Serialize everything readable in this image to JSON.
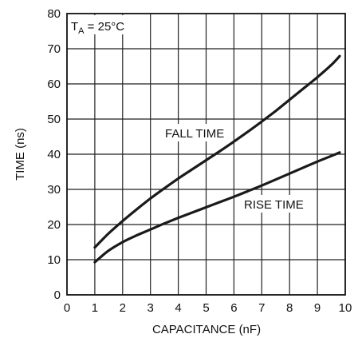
{
  "chart_data": {
    "type": "line",
    "xlabel": "CAPACITANCE (nF)",
    "ylabel": "TIME (ns)",
    "xlim": [
      0,
      10
    ],
    "ylim": [
      0,
      80
    ],
    "x_ticks": [
      "0",
      "1",
      "2",
      "3",
      "4",
      "5",
      "6",
      "7",
      "8",
      "9",
      "10"
    ],
    "y_ticks": [
      "0",
      "10",
      "20",
      "30",
      "40",
      "50",
      "60",
      "70",
      "80"
    ],
    "grid": true,
    "condition": {
      "main": "T",
      "sub": "A",
      "rest": " = 25°C"
    },
    "series": [
      {
        "name": "FALL TIME",
        "x": [
          1,
          1.5,
          2,
          2.5,
          3,
          3.5,
          4,
          4.5,
          5,
          5.5,
          6,
          6.5,
          7,
          7.5,
          8,
          8.5,
          9,
          9.5,
          9.8
        ],
        "y": [
          13.5,
          17.5,
          21,
          24.3,
          27.4,
          30.3,
          33.1,
          35.7,
          38.3,
          40.9,
          43.6,
          46.4,
          49.3,
          52.3,
          55.5,
          58.7,
          61.9,
          65.4,
          67.9
        ]
      },
      {
        "name": "RISE TIME",
        "x": [
          1,
          1.5,
          2,
          2.5,
          3,
          3.5,
          4,
          4.5,
          5,
          5.5,
          6,
          6.5,
          7,
          7.5,
          8,
          8.5,
          9,
          9.5,
          9.8
        ],
        "y": [
          9.3,
          12.6,
          15,
          16.9,
          18.6,
          20.3,
          21.9,
          23.4,
          24.9,
          26.4,
          27.9,
          29.5,
          31.1,
          32.8,
          34.5,
          36.2,
          37.9,
          39.5,
          40.5
        ]
      }
    ]
  }
}
